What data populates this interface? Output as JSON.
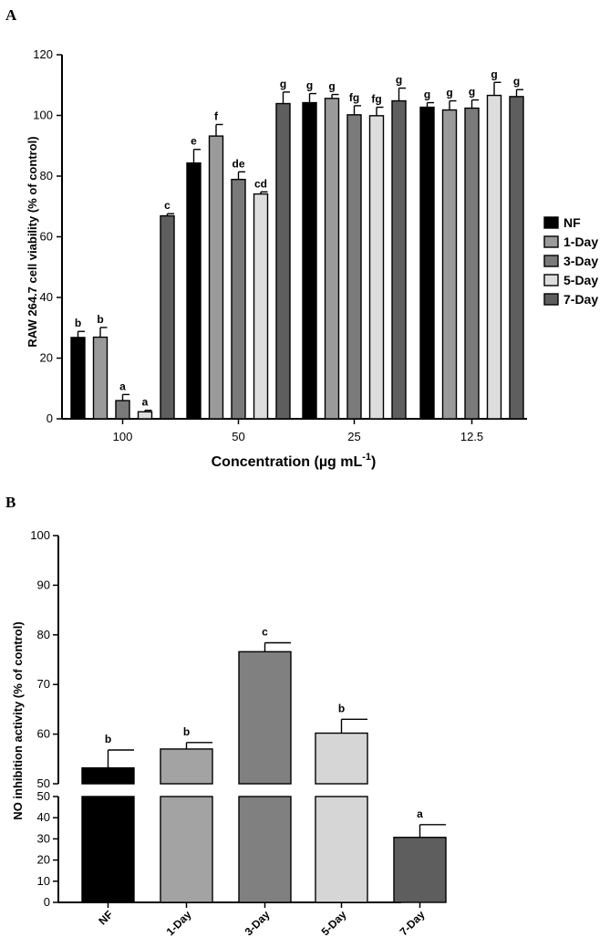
{
  "chart_data": [
    {
      "type": "bar",
      "panel_label": "A",
      "ylabel": "RAW 264.7 cell viability  (% of control)",
      "xlabel_main": "Concentration (µg mL",
      "xlabel_sup": "-1",
      "xlabel_end": ")",
      "ylim": [
        0,
        120
      ],
      "yticks": [
        "0",
        "20",
        "40",
        "60",
        "80",
        "100",
        "120"
      ],
      "categories": [
        "100",
        "50",
        "25",
        "12.5"
      ],
      "legend_position": "right",
      "series": [
        {
          "name": "NF",
          "color": "#000000",
          "values": [
            26.8,
            84.3,
            104.2,
            102.7
          ],
          "errors": [
            2.0,
            4.5,
            3.0,
            1.5
          ],
          "letters": [
            "b",
            "e",
            "g",
            "g"
          ]
        },
        {
          "name": "1-Day",
          "color": "#9a9a9a",
          "values": [
            26.9,
            93.2,
            105.6,
            101.8
          ],
          "errors": [
            3.2,
            3.8,
            1.3,
            3.0
          ],
          "letters": [
            "b",
            "f",
            "g",
            "g"
          ]
        },
        {
          "name": "3-Day",
          "color": "#7a7a7a",
          "values": [
            6.0,
            78.9,
            100.2,
            102.4
          ],
          "errors": [
            2.0,
            2.5,
            3.0,
            2.7
          ],
          "letters": [
            "a",
            "de",
            "fg",
            "g"
          ]
        },
        {
          "name": "5-Day",
          "color": "#dddddd",
          "values": [
            2.3,
            74.1,
            99.9,
            106.6
          ],
          "errors": [
            0.5,
            0.7,
            2.8,
            4.3
          ],
          "letters": [
            "a",
            "cd",
            "fg",
            "g"
          ]
        },
        {
          "name": "7-Day",
          "color": "#5e5e5e",
          "values": [
            66.9,
            103.9,
            104.8,
            106.2
          ],
          "errors": [
            0.7,
            3.8,
            4.2,
            2.3
          ],
          "letters": [
            "c",
            "g",
            "g",
            "g"
          ]
        }
      ]
    },
    {
      "type": "bar",
      "panel_label": "B",
      "ylabel": "NO inhibition activity  (% of control)",
      "axis_break": true,
      "ylim_lower": [
        0,
        50
      ],
      "ylim_upper": [
        50,
        100
      ],
      "yticks_lower": [
        "0",
        "10",
        "20",
        "30",
        "40",
        "50"
      ],
      "yticks_upper": [
        "50",
        "60",
        "70",
        "80",
        "90",
        "100"
      ],
      "categories": [
        "NF",
        "1-Day",
        "3-Day",
        "5-Day",
        "7-Day"
      ],
      "colors": [
        "#000000",
        "#a3a3a3",
        "#808080",
        "#d6d6d6",
        "#5e5e5e"
      ],
      "values": [
        53.2,
        57.0,
        76.6,
        60.2,
        30.7
      ],
      "errors": [
        3.6,
        1.3,
        1.8,
        2.8,
        6.0
      ],
      "letters": [
        "b",
        "b",
        "c",
        "b",
        "a"
      ]
    }
  ]
}
